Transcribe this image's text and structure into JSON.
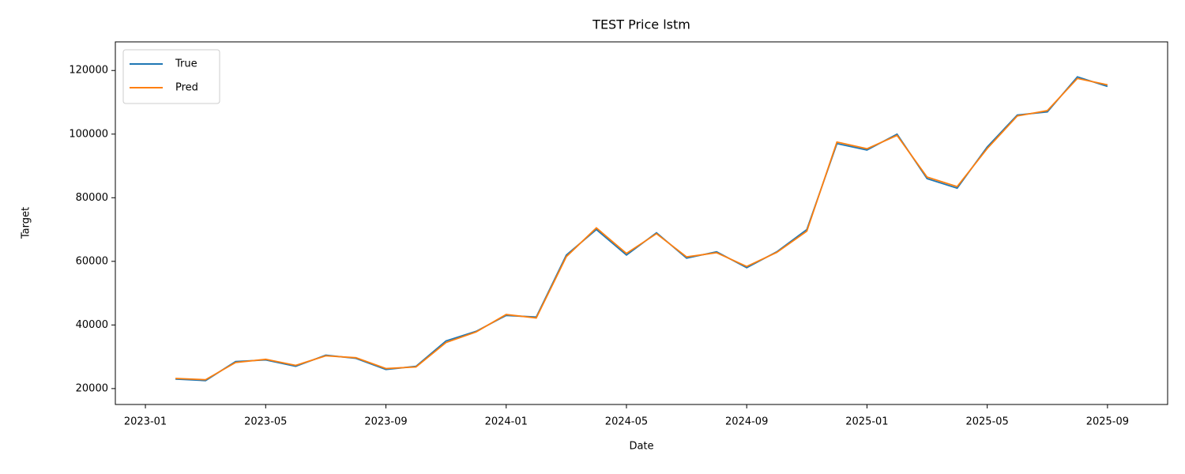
{
  "chart_data": {
    "type": "line",
    "title": "TEST Price lstm",
    "x_label": "Date",
    "y_label": "Target",
    "x": [
      "2023-02",
      "2023-03",
      "2023-04",
      "2023-05",
      "2023-06",
      "2023-07",
      "2023-08",
      "2023-09",
      "2023-10",
      "2023-11",
      "2023-12",
      "2024-01",
      "2024-02",
      "2024-03",
      "2024-04",
      "2024-05",
      "2024-06",
      "2024-07",
      "2024-08",
      "2024-09",
      "2024-10",
      "2024-11",
      "2024-12",
      "2025-01",
      "2025-02",
      "2025-03",
      "2025-04",
      "2025-05",
      "2025-06",
      "2025-07",
      "2025-08",
      "2025-09"
    ],
    "series": [
      {
        "name": "True",
        "color": "#1f77b4",
        "values": [
          23000,
          22500,
          28500,
          29000,
          27000,
          30500,
          29500,
          26000,
          27000,
          35000,
          38000,
          43000,
          42500,
          62000,
          70000,
          62000,
          69000,
          61000,
          63000,
          58000,
          63000,
          70000,
          97000,
          95000,
          100000,
          86000,
          83000,
          96000,
          106000,
          107000,
          118000,
          115000
        ]
      },
      {
        "name": "Pred",
        "color": "#ff7f0e",
        "values": [
          23200,
          22800,
          28200,
          29200,
          27300,
          30300,
          29700,
          26300,
          26800,
          34500,
          37800,
          43300,
          42200,
          61500,
          70500,
          62500,
          68700,
          61400,
          62700,
          58400,
          62800,
          69500,
          97500,
          95400,
          99600,
          86500,
          83500,
          95500,
          105700,
          107400,
          117500,
          115500
        ]
      }
    ],
    "xlim": [
      "2022-12",
      "2025-11"
    ],
    "xticks": [
      "2023-01",
      "2023-05",
      "2023-09",
      "2024-01",
      "2024-05",
      "2024-09",
      "2025-01",
      "2025-05",
      "2025-09"
    ],
    "ylim": [
      15000,
      129000
    ],
    "yticks": [
      20000,
      40000,
      60000,
      80000,
      100000,
      120000
    ],
    "grid": false,
    "legend": "upper left"
  }
}
